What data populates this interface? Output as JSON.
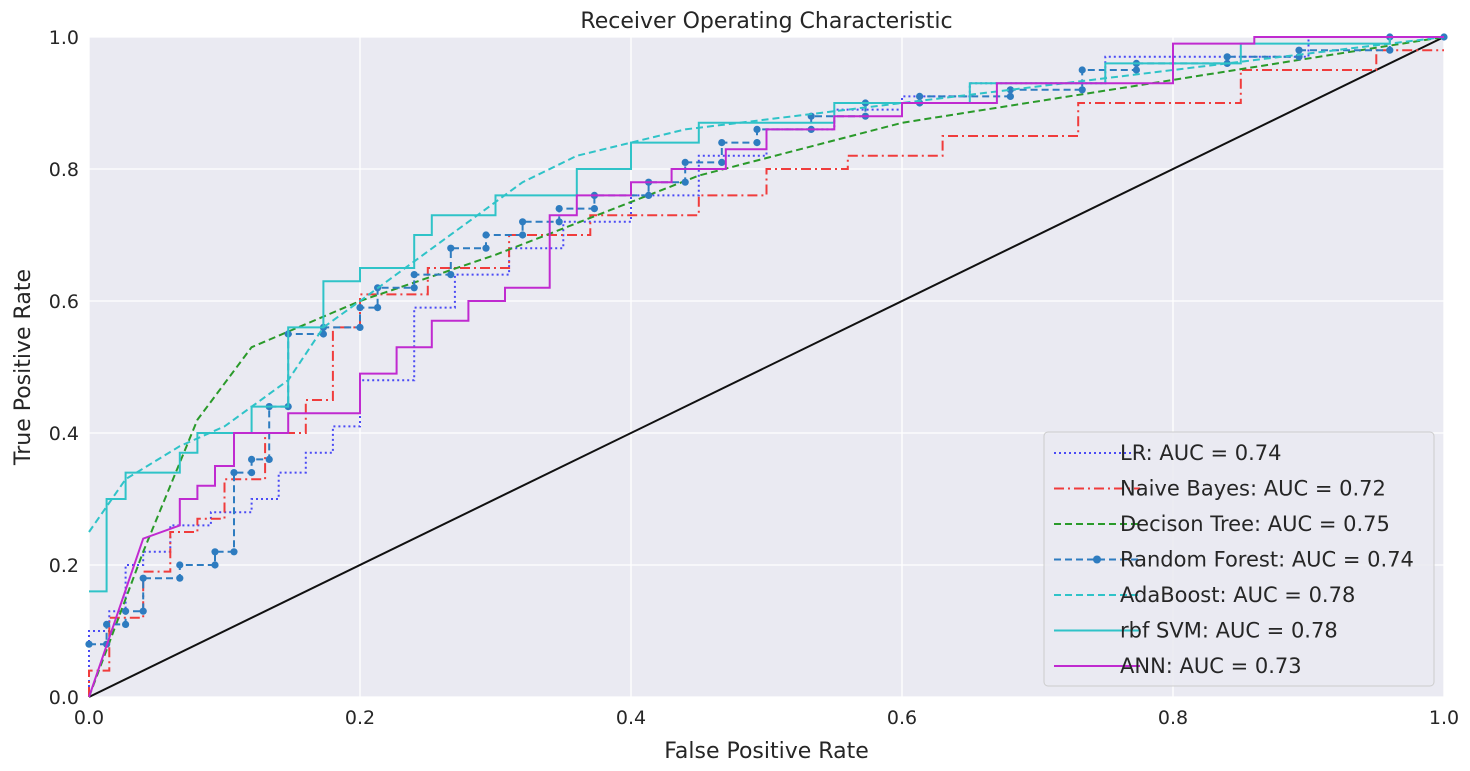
{
  "chart_data": {
    "type": "line",
    "title": "Receiver Operating Characteristic",
    "xlabel": "False Positive Rate",
    "ylabel": "True Positive Rate",
    "xlim": [
      0.0,
      1.0
    ],
    "ylim": [
      0.0,
      1.0
    ],
    "x_ticks": [
      "0.0",
      "0.2",
      "0.4",
      "0.6",
      "0.8",
      "1.0"
    ],
    "y_ticks": [
      "0.0",
      "0.2",
      "0.4",
      "0.6",
      "0.8",
      "1.0"
    ],
    "grid": true,
    "legend_position": "lower right",
    "background": "#eaeaf2",
    "diagonal": {
      "x": [
        0,
        1
      ],
      "y": [
        0,
        1
      ],
      "color": "#111111"
    },
    "series": [
      {
        "name": "LR: AUC = 0.74",
        "color": "#4a4af5",
        "style": "dotted",
        "x": [
          0.0,
          0.0,
          0.015,
          0.015,
          0.027,
          0.027,
          0.04,
          0.04,
          0.06,
          0.06,
          0.09,
          0.09,
          0.12,
          0.12,
          0.14,
          0.14,
          0.16,
          0.16,
          0.18,
          0.18,
          0.2,
          0.2,
          0.24,
          0.24,
          0.27,
          0.27,
          0.31,
          0.31,
          0.35,
          0.35,
          0.4,
          0.4,
          0.45,
          0.45,
          0.5,
          0.5,
          0.55,
          0.55,
          0.6,
          0.6,
          0.65,
          0.65,
          0.75,
          0.75,
          0.9,
          0.9,
          1.0
        ],
        "y": [
          0.0,
          0.1,
          0.1,
          0.13,
          0.13,
          0.2,
          0.2,
          0.22,
          0.22,
          0.26,
          0.26,
          0.28,
          0.28,
          0.3,
          0.3,
          0.34,
          0.34,
          0.37,
          0.37,
          0.41,
          0.41,
          0.48,
          0.48,
          0.59,
          0.59,
          0.64,
          0.64,
          0.68,
          0.68,
          0.72,
          0.72,
          0.76,
          0.76,
          0.82,
          0.82,
          0.86,
          0.86,
          0.89,
          0.89,
          0.91,
          0.91,
          0.93,
          0.93,
          0.97,
          0.97,
          1.0,
          1.0
        ]
      },
      {
        "name": "Naive Bayes: AUC = 0.72",
        "color": "#f03c3c",
        "style": "dashdot",
        "x": [
          0.0,
          0.0,
          0.015,
          0.015,
          0.04,
          0.04,
          0.06,
          0.06,
          0.08,
          0.08,
          0.1,
          0.1,
          0.13,
          0.13,
          0.16,
          0.16,
          0.18,
          0.18,
          0.2,
          0.2,
          0.25,
          0.25,
          0.31,
          0.31,
          0.37,
          0.37,
          0.45,
          0.45,
          0.5,
          0.5,
          0.56,
          0.56,
          0.63,
          0.63,
          0.73,
          0.73,
          0.85,
          0.85,
          0.95,
          0.95,
          1.0
        ],
        "y": [
          0.0,
          0.04,
          0.04,
          0.12,
          0.12,
          0.19,
          0.19,
          0.25,
          0.25,
          0.27,
          0.27,
          0.33,
          0.33,
          0.4,
          0.4,
          0.45,
          0.45,
          0.56,
          0.56,
          0.61,
          0.61,
          0.65,
          0.65,
          0.7,
          0.7,
          0.73,
          0.73,
          0.76,
          0.76,
          0.8,
          0.8,
          0.82,
          0.82,
          0.85,
          0.85,
          0.9,
          0.9,
          0.95,
          0.95,
          0.98,
          0.98
        ]
      },
      {
        "name": "Decison Tree: AUC = 0.75",
        "color": "#2a9a2a",
        "style": "dashed",
        "x": [
          0.0,
          0.04,
          0.08,
          0.12,
          0.2,
          0.3,
          0.45,
          0.6,
          1.0
        ],
        "y": [
          0.0,
          0.22,
          0.42,
          0.53,
          0.6,
          0.67,
          0.79,
          0.87,
          1.0
        ]
      },
      {
        "name": "Random Forest: AUC = 0.74",
        "color": "#2e7cc0",
        "style": "dashed-marker",
        "x": [
          0.0,
          0.013,
          0.013,
          0.027,
          0.027,
          0.04,
          0.04,
          0.067,
          0.067,
          0.093,
          0.093,
          0.107,
          0.107,
          0.12,
          0.12,
          0.133,
          0.133,
          0.147,
          0.147,
          0.173,
          0.173,
          0.2,
          0.2,
          0.213,
          0.213,
          0.24,
          0.24,
          0.267,
          0.267,
          0.293,
          0.293,
          0.32,
          0.32,
          0.347,
          0.347,
          0.373,
          0.373,
          0.413,
          0.413,
          0.44,
          0.44,
          0.467,
          0.467,
          0.493,
          0.493,
          0.533,
          0.533,
          0.573,
          0.573,
          0.613,
          0.613,
          0.68,
          0.68,
          0.733,
          0.733,
          0.773,
          0.773,
          0.84,
          0.84,
          0.893,
          0.893,
          0.96,
          0.96,
          1.0
        ],
        "y": [
          0.08,
          0.08,
          0.11,
          0.11,
          0.13,
          0.13,
          0.18,
          0.18,
          0.2,
          0.2,
          0.22,
          0.22,
          0.34,
          0.34,
          0.36,
          0.36,
          0.44,
          0.44,
          0.55,
          0.55,
          0.56,
          0.56,
          0.59,
          0.59,
          0.62,
          0.62,
          0.64,
          0.64,
          0.68,
          0.68,
          0.7,
          0.7,
          0.72,
          0.72,
          0.74,
          0.74,
          0.76,
          0.76,
          0.78,
          0.78,
          0.81,
          0.81,
          0.84,
          0.84,
          0.86,
          0.86,
          0.88,
          0.88,
          0.9,
          0.9,
          0.91,
          0.91,
          0.92,
          0.92,
          0.95,
          0.95,
          0.96,
          0.96,
          0.97,
          0.97,
          0.98,
          0.98,
          1.0,
          1.0
        ]
      },
      {
        "name": "AdaBoost: AUC = 0.78",
        "color": "#2fc3c8",
        "style": "dashed",
        "x": [
          0.0,
          0.0,
          0.027,
          0.027,
          0.067,
          0.067,
          0.1,
          0.1,
          0.147,
          0.147,
          0.173,
          0.173,
          0.2,
          0.2,
          0.24,
          0.24,
          0.28,
          0.28,
          0.32,
          0.32,
          0.36,
          0.36,
          0.4,
          0.4,
          0.44,
          0.44,
          0.48,
          0.48,
          0.6,
          0.6,
          0.72,
          0.72,
          0.84,
          0.84,
          0.96,
          0.96,
          1.0
        ],
        "y": [
          0.25,
          0.25,
          0.33,
          0.33,
          0.38,
          0.38,
          0.41,
          0.41,
          0.48,
          0.48,
          0.56,
          0.56,
          0.6,
          0.6,
          0.66,
          0.66,
          0.72,
          0.72,
          0.78,
          0.78,
          0.82,
          0.82,
          0.84,
          0.84,
          0.86,
          0.86,
          0.87,
          0.87,
          0.9,
          0.9,
          0.93,
          0.93,
          0.96,
          0.96,
          0.99,
          0.99,
          1.0
        ]
      },
      {
        "name": "rbf SVM: AUC = 0.78",
        "color": "#2fc3c8",
        "style": "solid",
        "x": [
          0.0,
          0.013,
          0.013,
          0.027,
          0.027,
          0.067,
          0.067,
          0.08,
          0.08,
          0.12,
          0.12,
          0.147,
          0.147,
          0.173,
          0.173,
          0.2,
          0.2,
          0.24,
          0.24,
          0.253,
          0.253,
          0.3,
          0.3,
          0.36,
          0.36,
          0.4,
          0.4,
          0.45,
          0.45,
          0.55,
          0.55,
          0.65,
          0.65,
          0.75,
          0.75,
          0.85,
          0.85,
          0.96,
          0.96,
          1.0
        ],
        "y": [
          0.16,
          0.16,
          0.3,
          0.3,
          0.34,
          0.34,
          0.37,
          0.37,
          0.4,
          0.4,
          0.44,
          0.44,
          0.56,
          0.56,
          0.63,
          0.63,
          0.65,
          0.65,
          0.7,
          0.7,
          0.73,
          0.73,
          0.76,
          0.76,
          0.8,
          0.8,
          0.84,
          0.84,
          0.87,
          0.87,
          0.9,
          0.9,
          0.93,
          0.93,
          0.96,
          0.96,
          0.99,
          0.99,
          1.0,
          1.0
        ]
      },
      {
        "name": "ANN: AUC = 0.73",
        "color": "#c02ad0",
        "style": "solid",
        "x": [
          0.0,
          0.04,
          0.067,
          0.067,
          0.08,
          0.08,
          0.093,
          0.093,
          0.107,
          0.107,
          0.147,
          0.147,
          0.2,
          0.2,
          0.227,
          0.227,
          0.253,
          0.253,
          0.28,
          0.28,
          0.307,
          0.307,
          0.34,
          0.34,
          0.36,
          0.36,
          0.4,
          0.4,
          0.43,
          0.43,
          0.47,
          0.47,
          0.5,
          0.5,
          0.55,
          0.55,
          0.6,
          0.6,
          0.67,
          0.67,
          0.8,
          0.8,
          0.86,
          0.86,
          1.0
        ],
        "y": [
          0.0,
          0.24,
          0.26,
          0.3,
          0.3,
          0.32,
          0.32,
          0.35,
          0.35,
          0.4,
          0.4,
          0.43,
          0.43,
          0.49,
          0.49,
          0.53,
          0.53,
          0.57,
          0.57,
          0.6,
          0.6,
          0.62,
          0.62,
          0.73,
          0.73,
          0.76,
          0.76,
          0.78,
          0.78,
          0.8,
          0.8,
          0.83,
          0.83,
          0.86,
          0.86,
          0.88,
          0.88,
          0.9,
          0.9,
          0.93,
          0.93,
          0.99,
          0.99,
          1.0,
          1.0
        ]
      }
    ]
  }
}
